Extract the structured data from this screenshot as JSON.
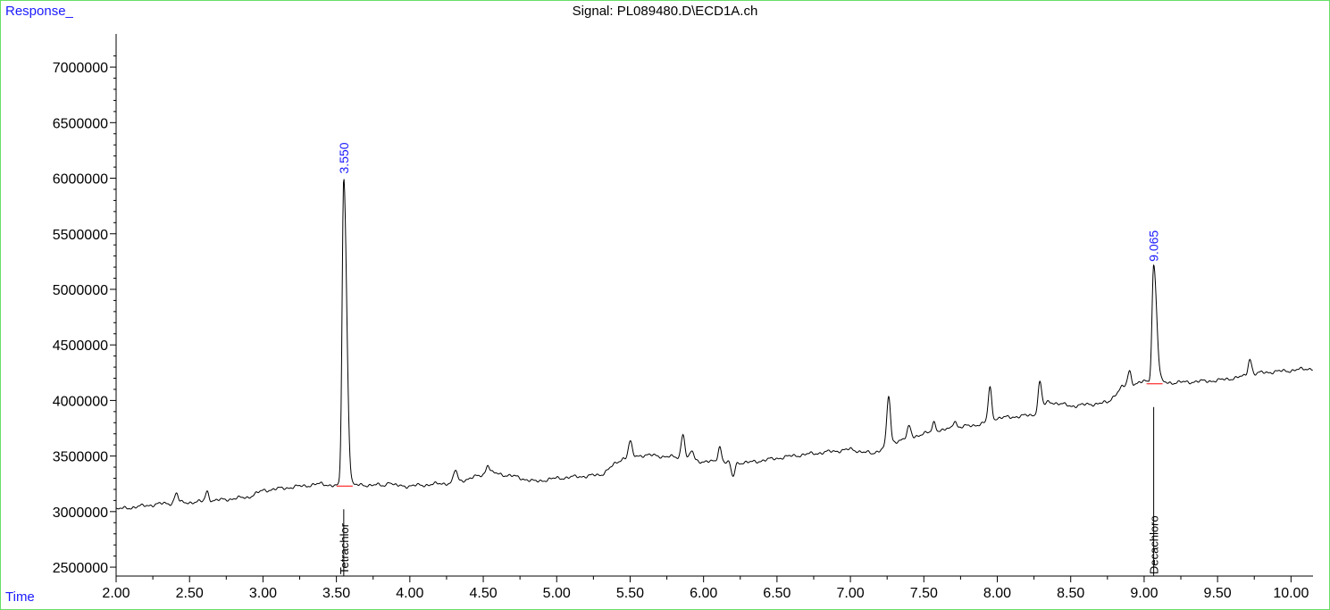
{
  "title": "Signal: PL089480.D\\ECD1A.ch",
  "ylabel": "Response_",
  "xlabel": "Time",
  "colors": {
    "frame": "#66e066",
    "axis_label": "#1a1aff",
    "signal": "#000000",
    "baseline": "#ff0000",
    "rt_label": "#1a1aff"
  },
  "chart_data": {
    "type": "line",
    "title": "Signal: PL089480.D\\ECD1A.ch",
    "xlabel": "Time",
    "ylabel": "Response_",
    "xlim": [
      2.0,
      10.15
    ],
    "ylim": [
      2420000,
      7250000
    ],
    "x_ticks": [
      2.0,
      2.5,
      3.0,
      3.5,
      4.0,
      4.5,
      5.0,
      5.5,
      6.0,
      6.5,
      7.0,
      7.5,
      8.0,
      8.5,
      9.0,
      9.5,
      10.0
    ],
    "x_tick_labels": [
      "2.00",
      "2.50",
      "3.00",
      "3.50",
      "4.00",
      "4.50",
      "5.00",
      "5.50",
      "6.00",
      "6.50",
      "7.00",
      "7.50",
      "8.00",
      "8.50",
      "9.00",
      "9.50",
      "10.00"
    ],
    "y_ticks": [
      2500000,
      3000000,
      3500000,
      4000000,
      4500000,
      5000000,
      5500000,
      6000000,
      6500000,
      7000000
    ],
    "y_tick_labels": [
      "2500000",
      "3000000",
      "3500000",
      "4000000",
      "4500000",
      "5000000",
      "5500000",
      "6000000",
      "6500000",
      "7000000"
    ],
    "grid": false,
    "baseline": [
      [
        2.0,
        3020000
      ],
      [
        2.3,
        3070000
      ],
      [
        2.6,
        3090000
      ],
      [
        2.9,
        3130000
      ],
      [
        3.0,
        3190000
      ],
      [
        3.2,
        3220000
      ],
      [
        3.4,
        3250000
      ],
      [
        3.5,
        3230000
      ],
      [
        3.7,
        3240000
      ],
      [
        4.0,
        3230000
      ],
      [
        4.3,
        3260000
      ],
      [
        4.55,
        3350000
      ],
      [
        4.7,
        3320000
      ],
      [
        4.85,
        3270000
      ],
      [
        5.0,
        3300000
      ],
      [
        5.3,
        3330000
      ],
      [
        5.45,
        3480000
      ],
      [
        5.6,
        3510000
      ],
      [
        5.8,
        3490000
      ],
      [
        6.0,
        3450000
      ],
      [
        6.3,
        3440000
      ],
      [
        6.6,
        3500000
      ],
      [
        7.0,
        3560000
      ],
      [
        7.15,
        3520000
      ],
      [
        7.3,
        3630000
      ],
      [
        7.5,
        3700000
      ],
      [
        7.7,
        3750000
      ],
      [
        7.9,
        3790000
      ],
      [
        8.0,
        3840000
      ],
      [
        8.25,
        3870000
      ],
      [
        8.35,
        3990000
      ],
      [
        8.5,
        3950000
      ],
      [
        8.75,
        3980000
      ],
      [
        8.85,
        4120000
      ],
      [
        9.0,
        4170000
      ],
      [
        9.2,
        4160000
      ],
      [
        9.5,
        4180000
      ],
      [
        9.65,
        4210000
      ],
      [
        9.8,
        4250000
      ],
      [
        10.0,
        4270000
      ],
      [
        10.15,
        4290000
      ]
    ],
    "minor_peaks": [
      [
        2.41,
        90000
      ],
      [
        2.62,
        90000
      ],
      [
        3.86,
        40000
      ],
      [
        4.31,
        110000
      ],
      [
        4.53,
        80000
      ],
      [
        5.5,
        140000
      ],
      [
        5.86,
        230000
      ],
      [
        5.92,
        80000
      ],
      [
        6.11,
        140000
      ],
      [
        6.2,
        -130000
      ],
      [
        7.26,
        440000
      ],
      [
        7.4,
        100000
      ],
      [
        7.57,
        90000
      ],
      [
        7.71,
        70000
      ],
      [
        7.95,
        300000
      ],
      [
        8.29,
        250000
      ],
      [
        8.9,
        130000
      ],
      [
        9.72,
        150000
      ]
    ],
    "peaks": [
      {
        "rt": 3.55,
        "rt_label": "3.550",
        "height": 6000000,
        "base": 3230000,
        "compound": "Tetrachlor"
      },
      {
        "rt": 9.065,
        "rt_label": "9.065",
        "height": 5210000,
        "base": 4150000,
        "compound": "Decachloro"
      }
    ]
  }
}
